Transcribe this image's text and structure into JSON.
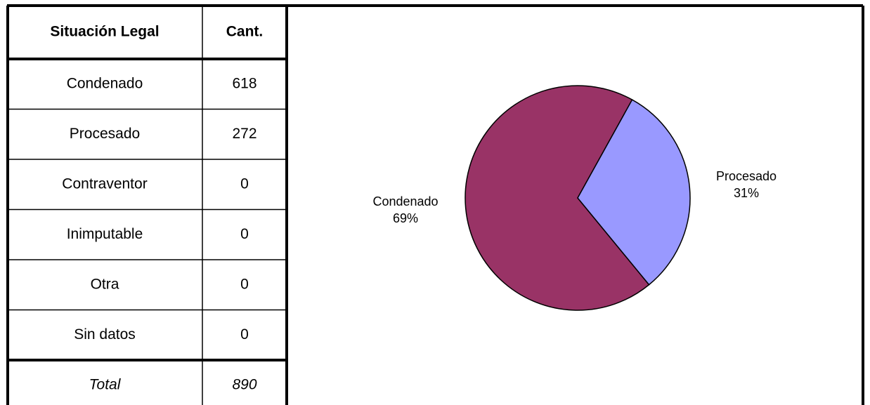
{
  "table": {
    "header": [
      "Situación Legal",
      "Cant."
    ],
    "rows": [
      [
        "Condenado",
        618
      ],
      [
        "Procesado",
        272
      ],
      [
        "Contraventor",
        0
      ],
      [
        "Inimputable",
        0
      ],
      [
        "Otra",
        0
      ],
      [
        "Sin datos",
        0
      ]
    ],
    "total": [
      "Total",
      890
    ]
  },
  "chart_data": {
    "type": "pie",
    "categories": [
      "Condenado",
      "Procesado"
    ],
    "values": [
      69,
      31
    ],
    "value_labels": [
      "69%",
      "31%"
    ],
    "colors": [
      "#993366",
      "#9999ff"
    ]
  }
}
